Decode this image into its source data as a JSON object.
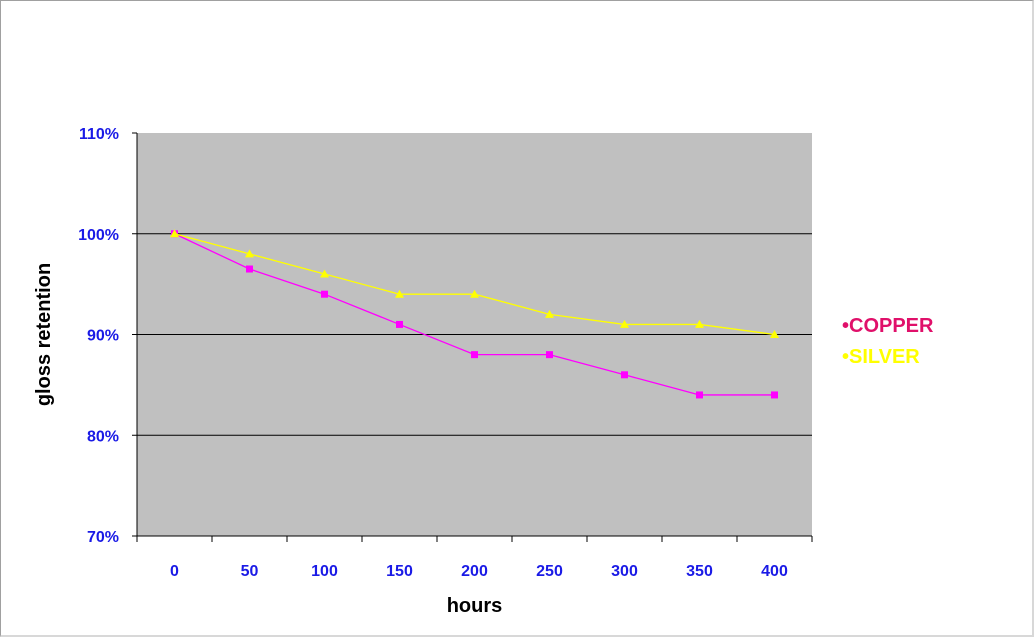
{
  "chart_data": {
    "type": "line",
    "xlabel": "hours",
    "ylabel": "gloss retention",
    "categories": [
      "0",
      "50",
      "100",
      "150",
      "200",
      "250",
      "300",
      "350",
      "400"
    ],
    "ylim": [
      70,
      110
    ],
    "yticks": [
      "70%",
      "80%",
      "90%",
      "100%",
      "110%"
    ],
    "grid": true,
    "legend_position": "right",
    "tick_color": "#1a1ae6",
    "plot_background": "#c0c0c0",
    "series": [
      {
        "name": "•COPPER",
        "color": "#ff00ff",
        "label_color": "#e0106a",
        "marker": "square",
        "values": [
          100,
          96.5,
          94,
          91,
          88,
          88,
          86,
          84,
          84
        ]
      },
      {
        "name": "•SILVER",
        "color": "#ffff00",
        "label_color": "#ffff00",
        "marker": "triangle",
        "values": [
          100,
          98,
          96,
          94,
          94,
          92,
          91,
          91,
          90
        ]
      }
    ]
  }
}
